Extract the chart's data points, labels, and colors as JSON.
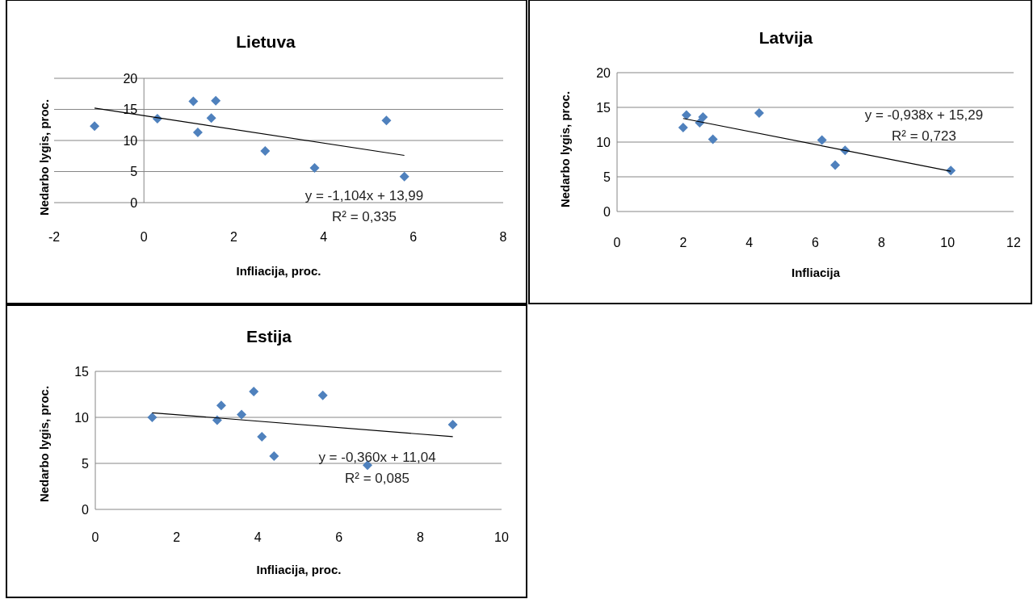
{
  "chart_data": [
    {
      "type": "scatter",
      "title": "Lietuva",
      "xlabel": "Infliacija, proc.",
      "ylabel": "Nedarbo lygis, proc.",
      "xlim": [
        -2,
        8
      ],
      "xticks": [
        -2,
        0,
        2,
        4,
        6,
        8
      ],
      "ylim": [
        0,
        20
      ],
      "yticks": [
        0,
        5,
        10,
        15,
        20
      ],
      "grid": "y",
      "marker": "diamond",
      "series": [
        {
          "color": "#4f81bd",
          "x": [
            -1.1,
            0.3,
            1.1,
            1.2,
            1.5,
            1.6,
            2.7,
            3.8,
            5.4,
            5.8
          ],
          "values": [
            12.3,
            13.5,
            16.3,
            11.3,
            13.6,
            16.4,
            8.3,
            5.6,
            13.2,
            4.2
          ]
        },
        {
          "type": "line",
          "color": "#000000",
          "marker": "none",
          "x": [
            -1.1,
            5.8
          ],
          "values": [
            15.2,
            7.6
          ]
        }
      ],
      "annotations": [
        "y = -1,104x + 13,99",
        "R² = 0,335"
      ]
    },
    {
      "type": "scatter",
      "title": "Latvija",
      "xlabel": "Infliacija",
      "ylabel": "Nedarbo lygis, proc.",
      "xlim": [
        0,
        12
      ],
      "xticks": [
        0,
        2,
        4,
        6,
        8,
        10,
        12
      ],
      "ylim": [
        0,
        20
      ],
      "yticks": [
        0,
        5,
        10,
        15,
        20
      ],
      "grid": "y",
      "marker": "diamond",
      "series": [
        {
          "color": "#4f81bd",
          "x": [
            2.0,
            2.1,
            2.5,
            2.6,
            2.9,
            4.3,
            6.2,
            6.6,
            6.9,
            10.1
          ],
          "values": [
            12.1,
            13.9,
            12.8,
            13.6,
            10.4,
            14.2,
            10.3,
            6.7,
            8.8,
            5.9
          ]
        },
        {
          "type": "line",
          "color": "#000000",
          "marker": "none",
          "x": [
            2.0,
            10.1
          ],
          "values": [
            13.4,
            5.8
          ]
        }
      ],
      "annotations": [
        "y = -0,938x + 15,29",
        "R² = 0,723"
      ]
    },
    {
      "type": "scatter",
      "title": "Estija",
      "xlabel": "Infliacija, proc.",
      "ylabel": "Nedarbo lygis, proc.",
      "xlim": [
        0,
        10
      ],
      "xticks": [
        0,
        2,
        4,
        6,
        8,
        10
      ],
      "ylim": [
        0,
        15
      ],
      "yticks": [
        0,
        5,
        10,
        15
      ],
      "grid": "y",
      "marker": "diamond",
      "series": [
        {
          "color": "#4f81bd",
          "x": [
            1.4,
            3.0,
            3.1,
            3.6,
            3.9,
            4.1,
            4.4,
            5.6,
            6.7,
            8.8
          ],
          "values": [
            10.0,
            9.7,
            11.3,
            10.3,
            12.8,
            7.9,
            5.8,
            12.4,
            4.8,
            9.2
          ]
        },
        {
          "type": "line",
          "color": "#000000",
          "marker": "none",
          "x": [
            1.4,
            8.8
          ],
          "values": [
            10.5,
            7.9
          ]
        }
      ],
      "annotations": [
        "y = -0,360x + 11,04",
        "R² = 0,085"
      ]
    }
  ]
}
